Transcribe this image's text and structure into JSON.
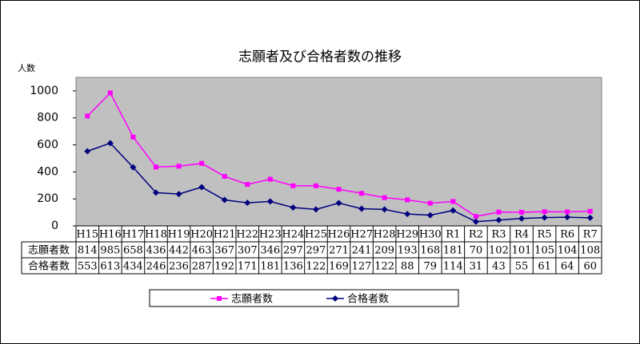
{
  "chart_data": {
    "type": "line",
    "title": "志願者及び合格者数の推移",
    "y_label": "人数",
    "categories": [
      "H15",
      "H16",
      "H17",
      "H18",
      "H19",
      "H20",
      "H21",
      "H22",
      "H23",
      "H24",
      "H25",
      "H26",
      "H27",
      "H28",
      "H29",
      "H30",
      "R1",
      "R2",
      "R3",
      "R4",
      "R5",
      "R6",
      "R7"
    ],
    "series": [
      {
        "name": "志願者数",
        "color": "#ff00ff",
        "marker": "square",
        "values": [
          814,
          985,
          658,
          436,
          442,
          463,
          367,
          307,
          346,
          297,
          297,
          271,
          241,
          209,
          193,
          168,
          181,
          70,
          102,
          101,
          105,
          104,
          108
        ]
      },
      {
        "name": "合格者数",
        "color": "#000080",
        "marker": "diamond",
        "values": [
          553,
          613,
          434,
          246,
          236,
          287,
          192,
          171,
          181,
          136,
          122,
          169,
          127,
          122,
          88,
          79,
          114,
          31,
          43,
          55,
          61,
          64,
          60
        ]
      }
    ],
    "ylim": [
      0,
      1100
    ],
    "yticks": [
      0,
      200,
      400,
      600,
      800,
      1000
    ],
    "grid": false,
    "plot_background": "#c0c0c0",
    "legend": "bottom"
  }
}
